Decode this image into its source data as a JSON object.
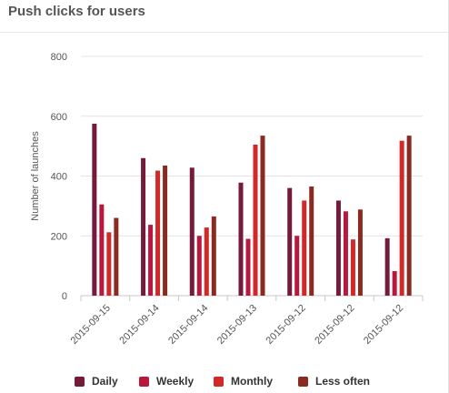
{
  "panel": {
    "title": "Push clicks for users"
  },
  "chart_data": {
    "type": "bar",
    "title": "",
    "xlabel": "",
    "ylabel": "Number of launches",
    "ylim": [
      0,
      800
    ],
    "yticks": [
      0,
      200,
      400,
      600,
      800
    ],
    "grid": true,
    "legend_position": "bottom",
    "categories": [
      "2015-09-15",
      "2015-09-14",
      "2015-09-14",
      "2015-09-13",
      "2015-09-12",
      "2015-09-12",
      "2015-09-12"
    ],
    "series": [
      {
        "name": "Daily",
        "color": "#741b3b",
        "values": [
          575,
          460,
          428,
          378,
          360,
          318,
          192
        ]
      },
      {
        "name": "Weekly",
        "color": "#b8183c",
        "values": [
          305,
          237,
          200,
          190,
          200,
          282,
          82
        ]
      },
      {
        "name": "Monthly",
        "color": "#d22828",
        "values": [
          212,
          418,
          228,
          505,
          318,
          188,
          518
        ]
      },
      {
        "name": "Less often",
        "color": "#8b2a20",
        "values": [
          260,
          435,
          265,
          535,
          365,
          288,
          535
        ]
      }
    ]
  }
}
